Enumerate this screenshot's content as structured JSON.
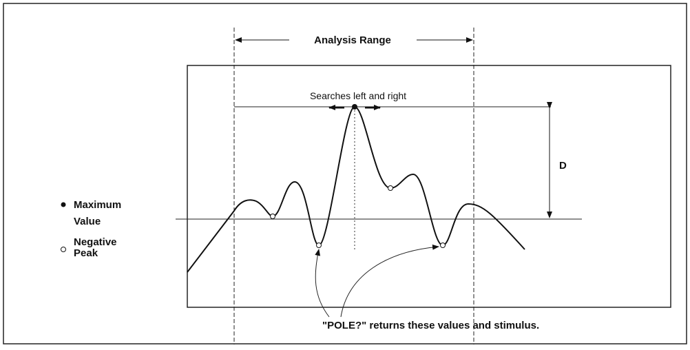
{
  "range_label": "Analysis Range",
  "search_label": "Searches left and right",
  "distance_label": "D",
  "legend": [
    {
      "lines": [
        "Maximum",
        "Value"
      ]
    },
    {
      "lines": [
        "Negative",
        "Peak"
      ]
    }
  ],
  "caption": "\"POLE?\" returns these values and stimulus."
}
